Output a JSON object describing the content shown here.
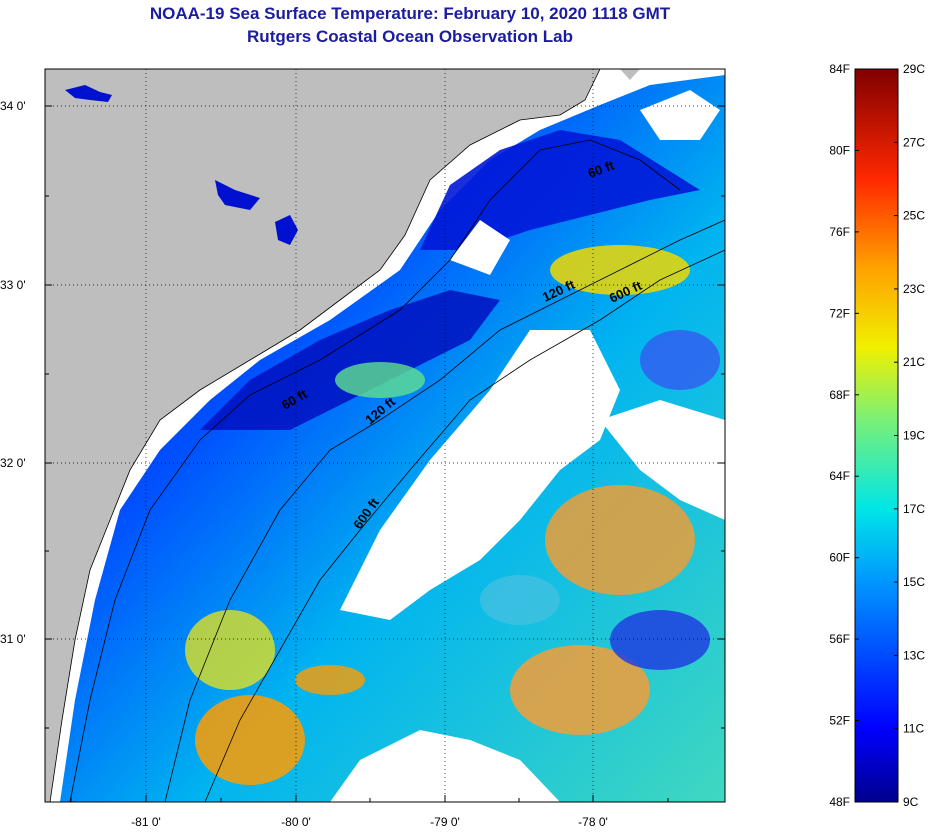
{
  "title": "NOAA-19 Sea Surface Temperature:  February 10, 2020 1118 GMT",
  "subtitle": "Rutgers Coastal Ocean Observation Lab",
  "lat_ticks": [
    "34 0'",
    "33 0'",
    "32 0'",
    "31 0'"
  ],
  "lon_ticks": [
    "-81 0'",
    "-80 0'",
    "-79 0'",
    "-78 0'"
  ],
  "contour_labels": [
    "60 ft",
    "120 ft",
    "600 ft",
    "60 ft",
    "120 ft",
    "600 ft"
  ],
  "colorbar": {
    "fahrenheit": [
      "84F",
      "80F",
      "76F",
      "72F",
      "68F",
      "64F",
      "60F",
      "56F",
      "52F",
      "48F"
    ],
    "celsius": [
      "29C",
      "27C",
      "25C",
      "23C",
      "21C",
      "19C",
      "17C",
      "15C",
      "13C",
      "11C",
      "9C"
    ]
  },
  "colors": {
    "land": "#bebebe",
    "cloud": "#ffffff",
    "cold": "#00008c",
    "warm": "#800000",
    "title": "#1c1ca0"
  }
}
